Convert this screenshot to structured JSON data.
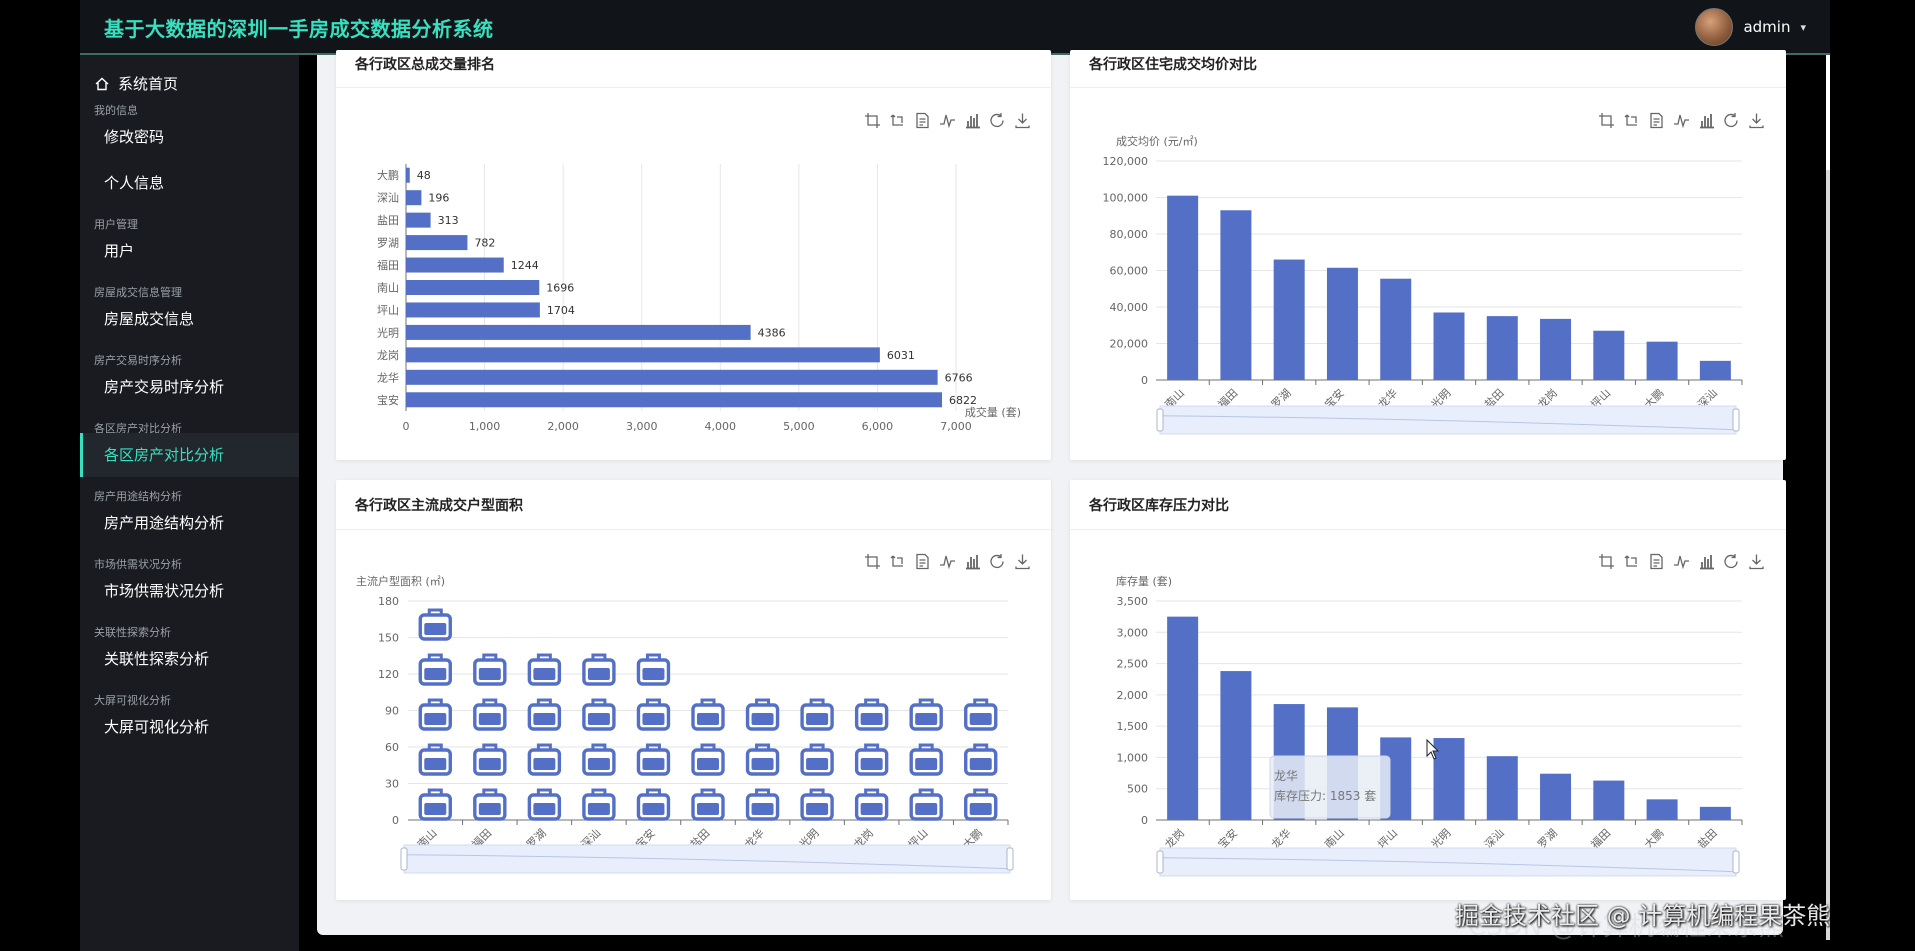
{
  "header": {
    "title": "基于大数据的深圳一手房成交数据分析系统",
    "user": "admin"
  },
  "sidebar": {
    "home": "系统首页",
    "groups": [
      {
        "label": "我的信息",
        "items": [
          "修改密码",
          "个人信息"
        ]
      },
      {
        "label": "用户管理",
        "items": [
          "用户"
        ]
      },
      {
        "label": "房屋成交信息管理",
        "items": [
          "房屋成交信息"
        ]
      },
      {
        "label": "房产交易时序分析",
        "items": [
          "房产交易时序分析"
        ]
      },
      {
        "label": "各区房产对比分析",
        "items": [
          "各区房产对比分析"
        ]
      },
      {
        "label": "房产用途结构分析",
        "items": [
          "房产用途结构分析"
        ]
      },
      {
        "label": "市场供需状况分析",
        "items": [
          "市场供需状况分析"
        ]
      },
      {
        "label": "关联性探索分析",
        "items": [
          "关联性探索分析"
        ]
      },
      {
        "label": "大屏可视化分析",
        "items": [
          "大屏可视化分析"
        ]
      }
    ],
    "active": "各区房产对比分析"
  },
  "toolbox_icons": [
    "crop-icon",
    "crop-reset-icon",
    "data-view-icon",
    "line-chart-icon",
    "bar-chart-icon",
    "refresh-icon",
    "download-icon"
  ],
  "watermark": {
    "text": "掘金技术社区 @ 计算机编程果茶熊",
    "ghost": "CSDN @计算机编程果茶熊"
  },
  "colors": {
    "bar": "#5470c6",
    "accent": "#37e0c0",
    "topbar": "#111418",
    "sidebar": "#191b20"
  },
  "chart_data": [
    {
      "type": "bar",
      "orientation": "horizontal",
      "title": "各行政区总成交量排名",
      "xlabel": "成交量 (套)",
      "ylabel": "",
      "categories": [
        "宝安",
        "龙华",
        "龙岗",
        "光明",
        "坪山",
        "南山",
        "福田",
        "罗湖",
        "盐田",
        "深汕",
        "大鹏"
      ],
      "values": [
        6822,
        6766,
        6031,
        4386,
        1704,
        1696,
        1244,
        782,
        313,
        196,
        48
      ],
      "xlim": [
        0,
        7000
      ],
      "xticks": [
        "0",
        "1,000",
        "2,000",
        "3,000",
        "4,000",
        "5,000",
        "6,000",
        "7,000"
      ],
      "grid": "vertical"
    },
    {
      "type": "bar",
      "title": "各行政区住宅成交均价对比",
      "xlabel": "",
      "ylabel": "成交均价 (元/㎡)",
      "categories": [
        "南山",
        "福田",
        "罗湖",
        "宝安",
        "龙华",
        "光明",
        "盐田",
        "龙岗",
        "坪山",
        "大鹏",
        "深汕"
      ],
      "values": [
        101000,
        93000,
        66000,
        61500,
        55500,
        37000,
        35000,
        33500,
        27000,
        21000,
        10500
      ],
      "ylim": [
        0,
        120000
      ],
      "yticks": [
        "0",
        "20,000",
        "40,000",
        "60,000",
        "80,000",
        "100,000",
        "120,000"
      ],
      "datazoom": true
    },
    {
      "type": "pictorial-bar",
      "title": "各行政区主流成交户型面积",
      "xlabel": "",
      "ylabel": "主流户型面积 (㎡)",
      "categories": [
        "南山",
        "福田",
        "罗湖",
        "深汕",
        "宝安",
        "盐田",
        "龙华",
        "光明",
        "龙岗",
        "坪山",
        "大鹏"
      ],
      "values": [
        165,
        130,
        130,
        130,
        130,
        100,
        100,
        100,
        100,
        100,
        100
      ],
      "ylim": [
        0,
        180
      ],
      "yticks": [
        "0",
        "30",
        "60",
        "90",
        "120",
        "150",
        "180"
      ],
      "symbol": "briefcase-icon",
      "datazoom": true
    },
    {
      "type": "bar",
      "title": "各行政区库存压力对比",
      "xlabel": "",
      "ylabel": "库存量 (套)",
      "categories": [
        "龙岗",
        "宝安",
        "龙华",
        "南山",
        "坪山",
        "光明",
        "深汕",
        "罗湖",
        "福田",
        "大鹏",
        "盐田"
      ],
      "values": [
        3250,
        2380,
        1853,
        1800,
        1320,
        1310,
        1020,
        740,
        630,
        330,
        210
      ],
      "ylim": [
        0,
        3500
      ],
      "yticks": [
        "0",
        "500",
        "1,000",
        "1,500",
        "2,000",
        "2,500",
        "3,000",
        "3,500"
      ],
      "tooltip": {
        "title": "龙华",
        "label": "库存压力: 1853 套"
      },
      "datazoom": true
    }
  ]
}
